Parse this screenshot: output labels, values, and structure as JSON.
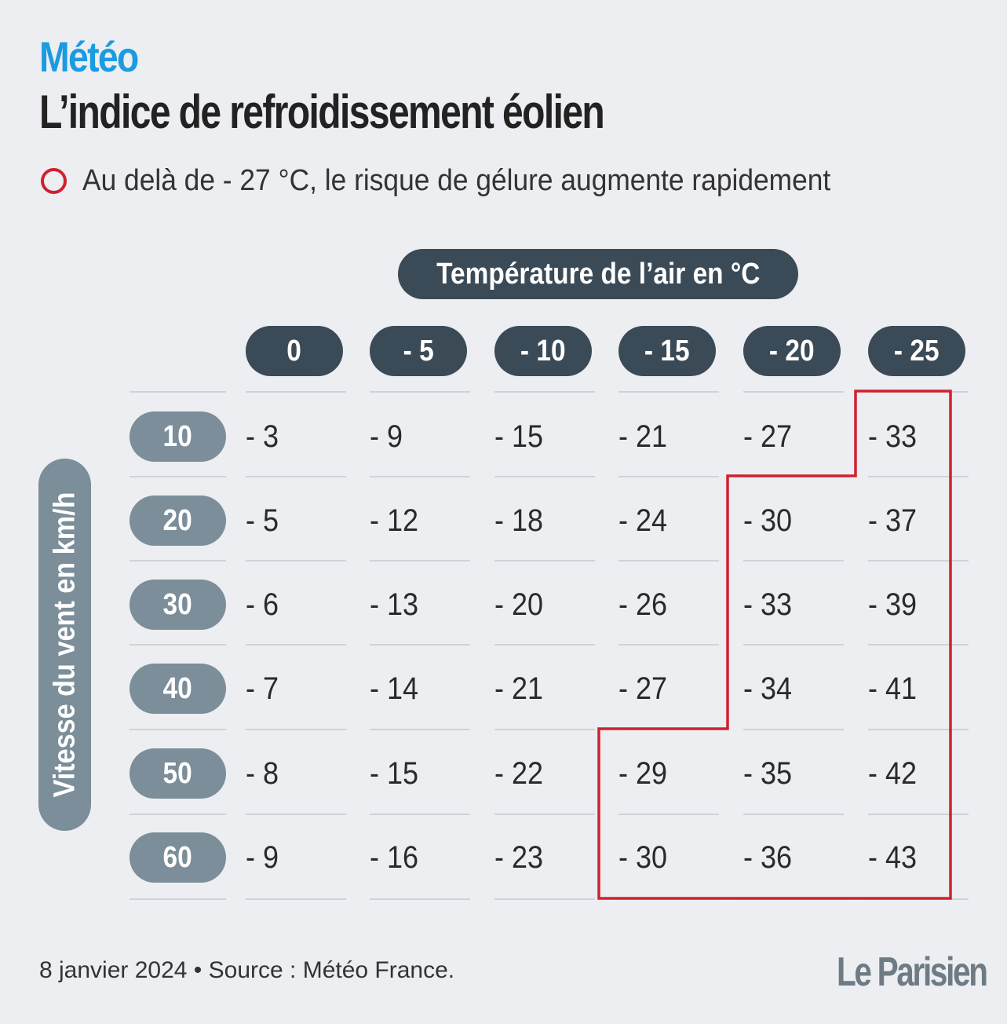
{
  "kicker": "Météo",
  "title": "L’indice de refroidissement éolien",
  "legend": {
    "text": "Au delà de - 27 °C, le risque de gélure augmente rapidement",
    "color": "#d0202f"
  },
  "chart_data": {
    "type": "table",
    "column_title": "Température de l’air en °C",
    "row_title": "Vitesse du vent en km/h",
    "columns": [
      "0",
      "- 5",
      "- 10",
      "- 15",
      "- 20",
      "- 25"
    ],
    "rows": [
      "10",
      "20",
      "30",
      "40",
      "50",
      "60"
    ],
    "values": [
      [
        "- 3",
        "- 9",
        "- 15",
        "- 21",
        "- 27",
        "- 33"
      ],
      [
        "- 5",
        "- 12",
        "- 18",
        "- 24",
        "- 30",
        "- 37"
      ],
      [
        "- 6",
        "- 13",
        "- 20",
        "- 26",
        "- 33",
        "- 39"
      ],
      [
        "- 7",
        "- 14",
        "- 21",
        "- 27",
        "- 34",
        "- 41"
      ],
      [
        "- 8",
        "- 15",
        "- 22",
        "- 29",
        "- 35",
        "- 42"
      ],
      [
        "- 9",
        "- 16",
        "- 23",
        "- 30",
        "- 36",
        "- 43"
      ]
    ],
    "risk_threshold": -27
  },
  "footer": "8 janvier 2024 • Source : Météo France.",
  "logo": "Le Parisien",
  "colors": {
    "accent": "#1b9be0",
    "risk": "#d0202f",
    "pill_dark": "#3a4a56",
    "pill_gray": "#7b8e99",
    "background": "#eceef1"
  }
}
